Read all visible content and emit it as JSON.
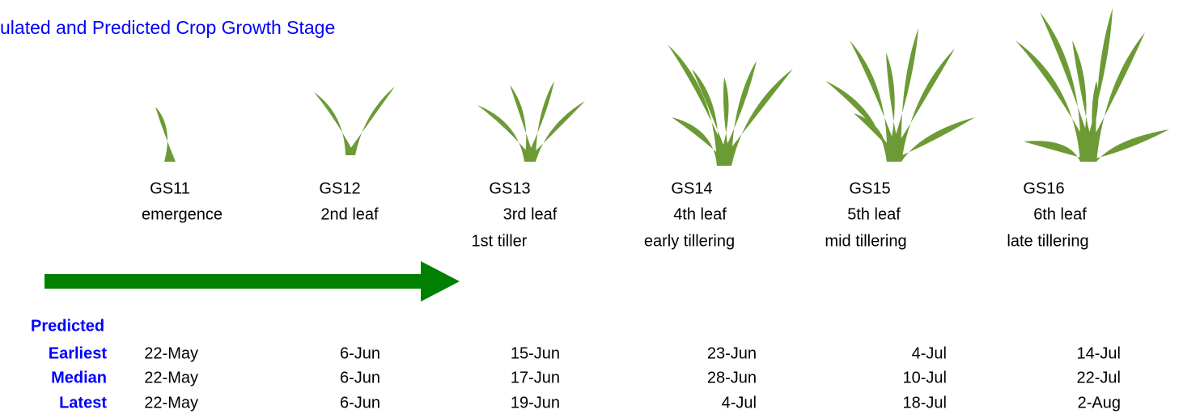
{
  "title": "ulated and Predicted Crop Growth Stage",
  "stages": [
    {
      "code": "GS11",
      "name": "emergence"
    },
    {
      "code": "GS12",
      "name": "2nd leaf"
    },
    {
      "code": "GS13",
      "name": "3rd leaf",
      "detail": "1st tiller"
    },
    {
      "code": "GS14",
      "name": "4th leaf",
      "detail": "early tillering"
    },
    {
      "code": "GS15",
      "name": "5th leaf",
      "detail": "mid tillering"
    },
    {
      "code": "GS16",
      "name": "6th leaf",
      "detail": "late tillering"
    }
  ],
  "predicted": {
    "label": "Predicted",
    "rows": [
      {
        "label": "Earliest",
        "dates": [
          "22-May",
          "6-Jun",
          "15-Jun",
          "23-Jun",
          "4-Jul",
          "14-Jul"
        ]
      },
      {
        "label": "Median",
        "dates": [
          "22-May",
          "6-Jun",
          "17-Jun",
          "28-Jun",
          "10-Jul",
          "22-Jul"
        ]
      },
      {
        "label": "Latest",
        "dates": [
          "22-May",
          "6-Jun",
          "19-Jun",
          "4-Jul",
          "18-Jul",
          "2-Aug"
        ]
      }
    ]
  }
}
